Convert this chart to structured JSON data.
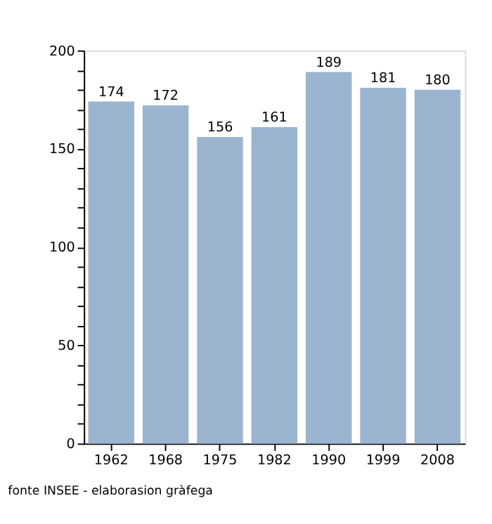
{
  "chart_data": {
    "type": "bar",
    "categories": [
      "1962",
      "1968",
      "1975",
      "1982",
      "1990",
      "1999",
      "2008"
    ],
    "values": [
      174,
      172,
      156,
      161,
      189,
      181,
      180
    ],
    "color": "#9bb4cf",
    "ylim": [
      0,
      200
    ],
    "yticks": [
      0,
      {
        "value": 10,
        "label": null
      },
      {
        "value": 20,
        "label": null
      },
      {
        "value": 30,
        "label": null
      },
      {
        "value": 40,
        "label": null
      },
      50,
      {
        "value": 60,
        "label": null
      },
      {
        "value": 70,
        "label": null
      },
      {
        "value": 80,
        "label": null
      },
      {
        "value": 90,
        "label": null
      },
      100,
      {
        "value": 110,
        "label": null
      },
      {
        "value": 120,
        "label": null
      },
      {
        "value": 130,
        "label": null
      },
      {
        "value": 140,
        "label": null
      },
      150,
      {
        "value": 160,
        "label": null
      },
      {
        "value": 170,
        "label": null
      },
      {
        "value": 180,
        "label": null
      },
      {
        "value": 190,
        "label": null
      },
      200
    ],
    "data_labels": true,
    "grid": false,
    "annotations": [
      "fonte INSEE - elaborasion gràfega"
    ]
  }
}
